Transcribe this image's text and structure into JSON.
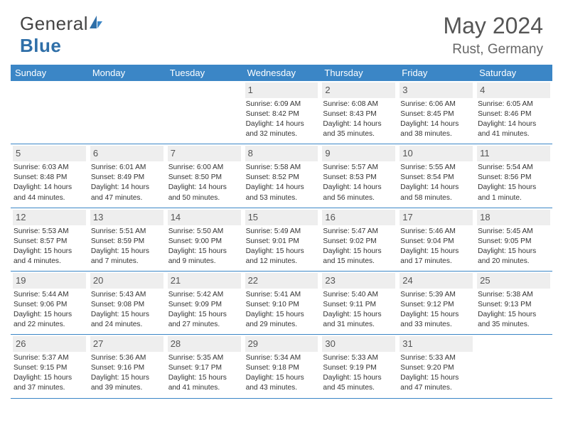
{
  "logo": {
    "part1": "General",
    "part2": "Blue"
  },
  "title": "May 2024",
  "location": "Rust, Germany",
  "colors": {
    "accent": "#3b86c6",
    "dow_text": "#ffffff",
    "daynum_bg": "#eeeeee",
    "text": "#333333",
    "muted": "#555555"
  },
  "days_of_week": [
    "Sunday",
    "Monday",
    "Tuesday",
    "Wednesday",
    "Thursday",
    "Friday",
    "Saturday"
  ],
  "weeks": [
    [
      {
        "n": "",
        "sunrise": "",
        "sunset": "",
        "daylight": ""
      },
      {
        "n": "",
        "sunrise": "",
        "sunset": "",
        "daylight": ""
      },
      {
        "n": "",
        "sunrise": "",
        "sunset": "",
        "daylight": ""
      },
      {
        "n": "1",
        "sunrise": "Sunrise: 6:09 AM",
        "sunset": "Sunset: 8:42 PM",
        "daylight": "Daylight: 14 hours and 32 minutes."
      },
      {
        "n": "2",
        "sunrise": "Sunrise: 6:08 AM",
        "sunset": "Sunset: 8:43 PM",
        "daylight": "Daylight: 14 hours and 35 minutes."
      },
      {
        "n": "3",
        "sunrise": "Sunrise: 6:06 AM",
        "sunset": "Sunset: 8:45 PM",
        "daylight": "Daylight: 14 hours and 38 minutes."
      },
      {
        "n": "4",
        "sunrise": "Sunrise: 6:05 AM",
        "sunset": "Sunset: 8:46 PM",
        "daylight": "Daylight: 14 hours and 41 minutes."
      }
    ],
    [
      {
        "n": "5",
        "sunrise": "Sunrise: 6:03 AM",
        "sunset": "Sunset: 8:48 PM",
        "daylight": "Daylight: 14 hours and 44 minutes."
      },
      {
        "n": "6",
        "sunrise": "Sunrise: 6:01 AM",
        "sunset": "Sunset: 8:49 PM",
        "daylight": "Daylight: 14 hours and 47 minutes."
      },
      {
        "n": "7",
        "sunrise": "Sunrise: 6:00 AM",
        "sunset": "Sunset: 8:50 PM",
        "daylight": "Daylight: 14 hours and 50 minutes."
      },
      {
        "n": "8",
        "sunrise": "Sunrise: 5:58 AM",
        "sunset": "Sunset: 8:52 PM",
        "daylight": "Daylight: 14 hours and 53 minutes."
      },
      {
        "n": "9",
        "sunrise": "Sunrise: 5:57 AM",
        "sunset": "Sunset: 8:53 PM",
        "daylight": "Daylight: 14 hours and 56 minutes."
      },
      {
        "n": "10",
        "sunrise": "Sunrise: 5:55 AM",
        "sunset": "Sunset: 8:54 PM",
        "daylight": "Daylight: 14 hours and 58 minutes."
      },
      {
        "n": "11",
        "sunrise": "Sunrise: 5:54 AM",
        "sunset": "Sunset: 8:56 PM",
        "daylight": "Daylight: 15 hours and 1 minute."
      }
    ],
    [
      {
        "n": "12",
        "sunrise": "Sunrise: 5:53 AM",
        "sunset": "Sunset: 8:57 PM",
        "daylight": "Daylight: 15 hours and 4 minutes."
      },
      {
        "n": "13",
        "sunrise": "Sunrise: 5:51 AM",
        "sunset": "Sunset: 8:59 PM",
        "daylight": "Daylight: 15 hours and 7 minutes."
      },
      {
        "n": "14",
        "sunrise": "Sunrise: 5:50 AM",
        "sunset": "Sunset: 9:00 PM",
        "daylight": "Daylight: 15 hours and 9 minutes."
      },
      {
        "n": "15",
        "sunrise": "Sunrise: 5:49 AM",
        "sunset": "Sunset: 9:01 PM",
        "daylight": "Daylight: 15 hours and 12 minutes."
      },
      {
        "n": "16",
        "sunrise": "Sunrise: 5:47 AM",
        "sunset": "Sunset: 9:02 PM",
        "daylight": "Daylight: 15 hours and 15 minutes."
      },
      {
        "n": "17",
        "sunrise": "Sunrise: 5:46 AM",
        "sunset": "Sunset: 9:04 PM",
        "daylight": "Daylight: 15 hours and 17 minutes."
      },
      {
        "n": "18",
        "sunrise": "Sunrise: 5:45 AM",
        "sunset": "Sunset: 9:05 PM",
        "daylight": "Daylight: 15 hours and 20 minutes."
      }
    ],
    [
      {
        "n": "19",
        "sunrise": "Sunrise: 5:44 AM",
        "sunset": "Sunset: 9:06 PM",
        "daylight": "Daylight: 15 hours and 22 minutes."
      },
      {
        "n": "20",
        "sunrise": "Sunrise: 5:43 AM",
        "sunset": "Sunset: 9:08 PM",
        "daylight": "Daylight: 15 hours and 24 minutes."
      },
      {
        "n": "21",
        "sunrise": "Sunrise: 5:42 AM",
        "sunset": "Sunset: 9:09 PM",
        "daylight": "Daylight: 15 hours and 27 minutes."
      },
      {
        "n": "22",
        "sunrise": "Sunrise: 5:41 AM",
        "sunset": "Sunset: 9:10 PM",
        "daylight": "Daylight: 15 hours and 29 minutes."
      },
      {
        "n": "23",
        "sunrise": "Sunrise: 5:40 AM",
        "sunset": "Sunset: 9:11 PM",
        "daylight": "Daylight: 15 hours and 31 minutes."
      },
      {
        "n": "24",
        "sunrise": "Sunrise: 5:39 AM",
        "sunset": "Sunset: 9:12 PM",
        "daylight": "Daylight: 15 hours and 33 minutes."
      },
      {
        "n": "25",
        "sunrise": "Sunrise: 5:38 AM",
        "sunset": "Sunset: 9:13 PM",
        "daylight": "Daylight: 15 hours and 35 minutes."
      }
    ],
    [
      {
        "n": "26",
        "sunrise": "Sunrise: 5:37 AM",
        "sunset": "Sunset: 9:15 PM",
        "daylight": "Daylight: 15 hours and 37 minutes."
      },
      {
        "n": "27",
        "sunrise": "Sunrise: 5:36 AM",
        "sunset": "Sunset: 9:16 PM",
        "daylight": "Daylight: 15 hours and 39 minutes."
      },
      {
        "n": "28",
        "sunrise": "Sunrise: 5:35 AM",
        "sunset": "Sunset: 9:17 PM",
        "daylight": "Daylight: 15 hours and 41 minutes."
      },
      {
        "n": "29",
        "sunrise": "Sunrise: 5:34 AM",
        "sunset": "Sunset: 9:18 PM",
        "daylight": "Daylight: 15 hours and 43 minutes."
      },
      {
        "n": "30",
        "sunrise": "Sunrise: 5:33 AM",
        "sunset": "Sunset: 9:19 PM",
        "daylight": "Daylight: 15 hours and 45 minutes."
      },
      {
        "n": "31",
        "sunrise": "Sunrise: 5:33 AM",
        "sunset": "Sunset: 9:20 PM",
        "daylight": "Daylight: 15 hours and 47 minutes."
      },
      {
        "n": "",
        "sunrise": "",
        "sunset": "",
        "daylight": ""
      }
    ]
  ]
}
